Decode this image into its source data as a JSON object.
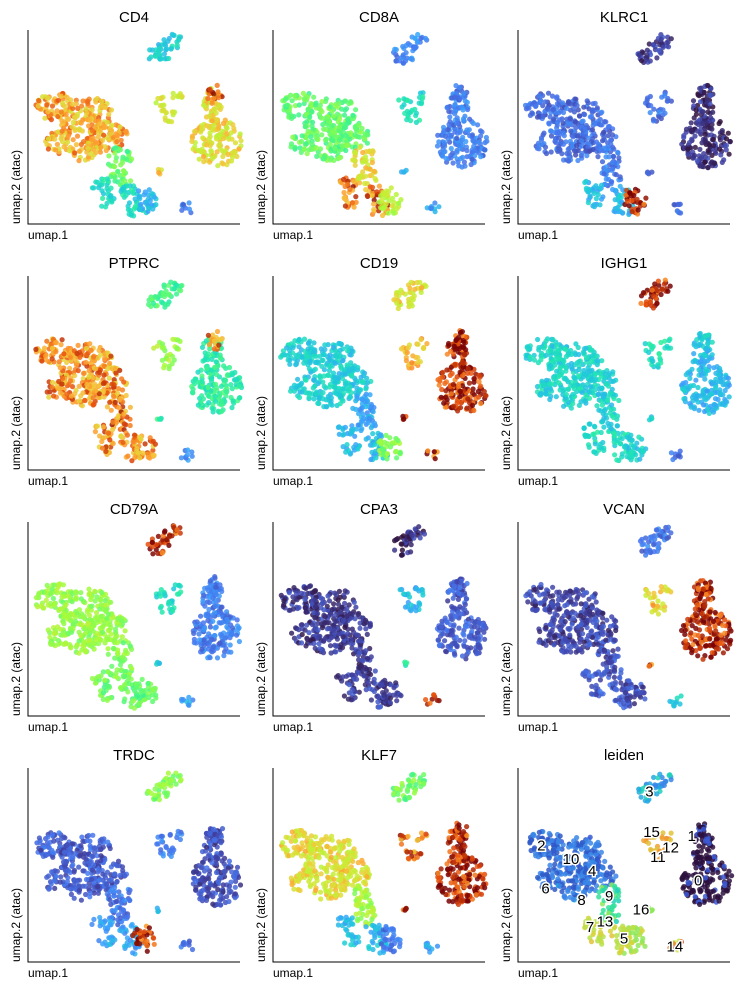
{
  "figure": {
    "xlabel": "umap.1",
    "ylabel": "umap.2 (atac)"
  },
  "chart_data": [
    {
      "type": "scatter",
      "title": "CD4",
      "xlabel": "umap.1",
      "ylabel": "umap.2 (atac)",
      "colormap": "turbo",
      "region_values": {
        "tcell_arm": 0.88,
        "tcell_stem": 0.6,
        "lower_branch": 0.45,
        "small_blob": 0.35,
        "top_island": 0.4,
        "mid_cluster": 0.78,
        "big_right": 0.82,
        "right_top": 0.95,
        "dot": 0.85,
        "tiny_island": 0.2
      }
    },
    {
      "type": "scatter",
      "title": "CD8A",
      "xlabel": "umap.1",
      "ylabel": "umap.2 (atac)",
      "colormap": "turbo",
      "region_values": {
        "tcell_arm": 0.6,
        "tcell_stem": 0.82,
        "lower_branch": 0.92,
        "small_blob": 0.75,
        "top_island": 0.25,
        "mid_cluster": 0.45,
        "big_right": 0.22,
        "right_top": 0.2,
        "dot": 0.3,
        "tiny_island": 0.3
      }
    },
    {
      "type": "scatter",
      "title": "KLRC1",
      "xlabel": "umap.1",
      "ylabel": "umap.2 (atac)",
      "colormap": "turbo",
      "region_values": {
        "tcell_arm": 0.18,
        "tcell_stem": 0.22,
        "lower_branch": 0.35,
        "small_blob": 0.98,
        "top_island": 0.08,
        "mid_cluster": 0.2,
        "big_right": 0.06,
        "right_top": 0.07,
        "dot": 0.15,
        "tiny_island": 0.2
      }
    },
    {
      "type": "scatter",
      "title": "PTPRC",
      "xlabel": "umap.1",
      "ylabel": "umap.2 (atac)",
      "colormap": "turbo",
      "region_values": {
        "tcell_arm": 0.9,
        "tcell_stem": 0.92,
        "lower_branch": 0.9,
        "small_blob": 0.9,
        "top_island": 0.55,
        "mid_cluster": 0.7,
        "big_right": 0.5,
        "right_top": 0.9,
        "dot": 0.5,
        "tiny_island": 0.25
      }
    },
    {
      "type": "scatter",
      "title": "CD19",
      "xlabel": "umap.1",
      "ylabel": "umap.2 (atac)",
      "colormap": "turbo",
      "region_values": {
        "tcell_arm": 0.4,
        "tcell_stem": 0.3,
        "lower_branch": 0.35,
        "small_blob": 0.65,
        "top_island": 0.82,
        "mid_cluster": 0.88,
        "big_right": 0.98,
        "right_top": 0.97,
        "dot": 0.98,
        "tiny_island": 0.95
      }
    },
    {
      "type": "scatter",
      "title": "IGHG1",
      "xlabel": "umap.1",
      "ylabel": "umap.2 (atac)",
      "colormap": "turbo",
      "region_values": {
        "tcell_arm": 0.42,
        "tcell_stem": 0.42,
        "lower_branch": 0.45,
        "small_blob": 0.4,
        "top_island": 0.98,
        "mid_cluster": 0.45,
        "big_right": 0.35,
        "right_top": 0.4,
        "dot": 0.4,
        "tiny_island": 0.2
      }
    },
    {
      "type": "scatter",
      "title": "CD79A",
      "xlabel": "umap.1",
      "ylabel": "umap.2 (atac)",
      "colormap": "turbo",
      "region_values": {
        "tcell_arm": 0.68,
        "tcell_stem": 0.64,
        "lower_branch": 0.62,
        "small_blob": 0.6,
        "top_island": 0.97,
        "mid_cluster": 0.45,
        "big_right": 0.22,
        "right_top": 0.2,
        "dot": 0.4,
        "tiny_island": 0.3
      }
    },
    {
      "type": "scatter",
      "title": "CPA3",
      "xlabel": "umap.1",
      "ylabel": "umap.2 (atac)",
      "colormap": "turbo",
      "region_values": {
        "tcell_arm": 0.08,
        "tcell_stem": 0.08,
        "lower_branch": 0.1,
        "small_blob": 0.08,
        "top_island": 0.05,
        "mid_cluster": 0.35,
        "big_right": 0.15,
        "right_top": 0.15,
        "dot": 0.5,
        "tiny_island": 0.98
      }
    },
    {
      "type": "scatter",
      "title": "VCAN",
      "xlabel": "umap.1",
      "ylabel": "umap.2 (atac)",
      "colormap": "turbo",
      "region_values": {
        "tcell_arm": 0.1,
        "tcell_stem": 0.12,
        "lower_branch": 0.15,
        "small_blob": 0.12,
        "top_island": 0.2,
        "mid_cluster": 0.85,
        "big_right": 0.98,
        "right_top": 0.97,
        "dot": 0.95,
        "tiny_island": 0.4
      }
    },
    {
      "type": "scatter",
      "title": "TRDC",
      "xlabel": "umap.1",
      "ylabel": "umap.2 (atac)",
      "colormap": "turbo",
      "region_values": {
        "tcell_arm": 0.15,
        "tcell_stem": 0.2,
        "lower_branch": 0.3,
        "small_blob": 0.97,
        "top_island": 0.65,
        "mid_cluster": 0.25,
        "big_right": 0.12,
        "right_top": 0.12,
        "dot": 0.35,
        "tiny_island": 0.2
      }
    },
    {
      "type": "scatter",
      "title": "KLF7",
      "xlabel": "umap.1",
      "ylabel": "umap.2 (atac)",
      "colormap": "turbo",
      "region_values": {
        "tcell_arm": 0.82,
        "tcell_stem": 0.7,
        "lower_branch": 0.35,
        "small_blob": 0.2,
        "top_island": 0.62,
        "mid_cluster": 0.92,
        "big_right": 0.98,
        "right_top": 0.97,
        "dot": 0.96,
        "tiny_island": 0.3
      }
    },
    {
      "type": "scatter",
      "title": "leiden",
      "xlabel": "umap.1",
      "ylabel": "umap.2 (atac)",
      "colormap": "categorical",
      "region_values": {
        "tcell_arm": 0.2,
        "tcell_stem": 0.45,
        "lower_branch": 0.6,
        "small_blob": 0.55,
        "top_island": 0.3,
        "mid_cluster": 0.75,
        "big_right": 0.02,
        "right_top": 0.05,
        "dot": 0.5,
        "tiny_island": 0.9
      },
      "cluster_labels": [
        "0",
        "1",
        "2",
        "3",
        "4",
        "5",
        "6",
        "7",
        "8",
        "9",
        "10",
        "11",
        "12",
        "13",
        "14",
        "15",
        "16"
      ]
    }
  ]
}
